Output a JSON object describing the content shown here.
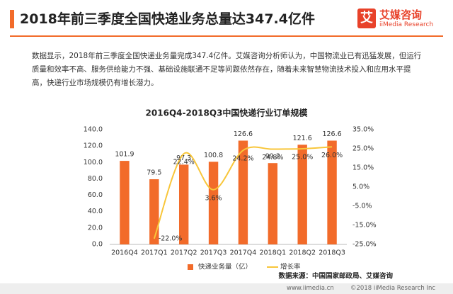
{
  "header": {
    "title": "2018年前三季度全国快递业务总量达347.4亿件",
    "logo_icon": "艾",
    "logo_name": "艾媒咨询",
    "logo_sub": "iiMedia Research"
  },
  "paragraph": "数据显示，2018年前三季度全国快递业务量完成347.4亿件。艾媒咨询分析师认为，中国物流业已有迅猛发展，但运行质量和效率不高、服务供给能力不强、基础设施联通不足等问题依然存在，随着未来智慧物流技术投入和应用水平提高，快递行业市场规模仍有增长潜力。",
  "source": "数据来源：中国国家邮政局、艾媒咨询",
  "footer": {
    "url": "www.iimedia.cn",
    "copyright": "©2018 iiMedia Research Inc"
  },
  "chart_data": {
    "type": "bar_line",
    "title": "2016Q4-2018Q3中国快递行业订单规模",
    "categories": [
      "2016Q4",
      "2017Q1",
      "2017Q2",
      "2017Q3",
      "2017Q4",
      "2018Q1",
      "2018Q2",
      "2018Q3"
    ],
    "series": [
      {
        "name": "快递业务量（亿）",
        "color": "#f26b2a",
        "type": "bar",
        "values": [
          101.9,
          79.5,
          97.3,
          100.8,
          126.6,
          99.2,
          121.6,
          126.6
        ]
      },
      {
        "name": "增长率",
        "color": "#f8c63a",
        "type": "line",
        "axis": "y2",
        "values": [
          null,
          -22.0,
          22.4,
          3.6,
          24.2,
          24.8,
          25.0,
          26.0
        ],
        "value_labels": [
          null,
          "-22.0%",
          "22.4%",
          "3.6%",
          "24.2%",
          "24.8%",
          "25.0%",
          "26.0%"
        ]
      }
    ],
    "ylim": [
      0,
      140
    ],
    "yticks": [
      {
        "value": 0,
        "label": "0.0"
      },
      {
        "value": 20,
        "label": "20.0"
      },
      {
        "value": 40,
        "label": "40.0"
      },
      {
        "value": 60,
        "label": "60.0"
      },
      {
        "value": 80,
        "label": "80.0"
      },
      {
        "value": 100,
        "label": "100.0"
      },
      {
        "value": 120,
        "label": "120.0"
      },
      {
        "value": 140,
        "label": "140.0"
      }
    ],
    "y2lim": [
      -25,
      35
    ],
    "y2ticks": [
      {
        "value": -25,
        "label": "-25.0%"
      },
      {
        "value": -15,
        "label": "-15.0%"
      },
      {
        "value": -5,
        "label": "-5.0%"
      },
      {
        "value": 5,
        "label": "5.0%"
      },
      {
        "value": 15,
        "label": "15.0%"
      },
      {
        "value": 25,
        "label": "25.0%"
      },
      {
        "value": 35,
        "label": "35.0%"
      }
    ],
    "legend": "bottom"
  }
}
